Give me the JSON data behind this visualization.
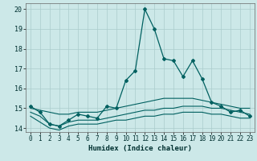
{
  "xlabel": "Humidex (Indice chaleur)",
  "background_color": "#cce8e8",
  "line_color": "#006060",
  "grid_color": "#aacccc",
  "xlim": [
    -0.5,
    23.5
  ],
  "ylim": [
    13.8,
    20.3
  ],
  "xticks": [
    0,
    1,
    2,
    3,
    4,
    5,
    6,
    7,
    8,
    9,
    10,
    11,
    12,
    13,
    14,
    15,
    16,
    17,
    18,
    19,
    20,
    21,
    22,
    23
  ],
  "yticks": [
    14,
    15,
    16,
    17,
    18,
    19,
    20
  ],
  "line1_markers": [
    15.1,
    14.8,
    14.2,
    14.1,
    14.4,
    14.7,
    14.6,
    14.5,
    15.1,
    15.0,
    16.4,
    16.9,
    20.0,
    19.0,
    17.5,
    17.4,
    16.6,
    17.4,
    16.5,
    15.3,
    15.1,
    14.8,
    14.9,
    14.6
  ],
  "line2_rising": [
    15.0,
    14.9,
    14.8,
    14.7,
    14.7,
    14.8,
    14.8,
    14.8,
    14.9,
    15.0,
    15.1,
    15.2,
    15.3,
    15.4,
    15.5,
    15.5,
    15.5,
    15.5,
    15.4,
    15.3,
    15.2,
    15.1,
    15.0,
    15.0
  ],
  "line3_flat": [
    14.8,
    14.6,
    14.2,
    14.1,
    14.3,
    14.4,
    14.4,
    14.4,
    14.5,
    14.6,
    14.7,
    14.8,
    14.9,
    14.9,
    15.0,
    15.0,
    15.1,
    15.1,
    15.1,
    15.0,
    15.0,
    14.9,
    14.8,
    14.7
  ],
  "line4_bottom": [
    14.6,
    14.3,
    14.0,
    13.9,
    14.1,
    14.2,
    14.2,
    14.2,
    14.3,
    14.4,
    14.4,
    14.5,
    14.6,
    14.6,
    14.7,
    14.7,
    14.8,
    14.8,
    14.8,
    14.7,
    14.7,
    14.6,
    14.5,
    14.5
  ]
}
